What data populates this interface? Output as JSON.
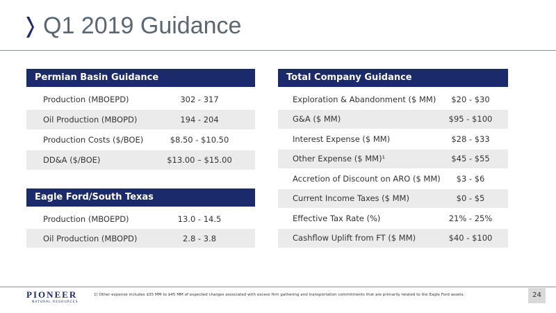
{
  "header": {
    "title": "Q1 2019 Guidance"
  },
  "permian": {
    "title": "Permian Basin Guidance",
    "rows": [
      [
        "Production (MBOEPD)",
        "302 - 317"
      ],
      [
        "Oil Production (MBOPD)",
        "194 - 204"
      ],
      [
        "Production Costs ($/BOE)",
        "$8.50 - $10.50"
      ],
      [
        "DD&A ($/BOE)",
        "$13.00 – $15.00"
      ]
    ]
  },
  "eagle_ford": {
    "title": "Eagle Ford/South Texas",
    "rows": [
      [
        "Production (MBOEPD)",
        "13.0 - 14.5"
      ],
      [
        "Oil Production (MBOPD)",
        "2.8 - 3.8"
      ]
    ]
  },
  "company": {
    "title": "Total Company Guidance",
    "rows": [
      [
        "Exploration & Abandonment ($ MM)",
        "$20 - $30"
      ],
      [
        "G&A ($ MM)",
        "$95 - $100"
      ],
      [
        "Interest Expense ($ MM)",
        "$28 - $33"
      ],
      [
        "Other Expense ($ MM)¹",
        "$45 - $55"
      ],
      [
        "Accretion of Discount on ARO ($ MM)",
        "$3 - $6"
      ],
      [
        "Current Income Taxes ($ MM)",
        "$0 - $5"
      ],
      [
        "Effective Tax Rate (%)",
        "21% - 25%"
      ],
      [
        "Cashflow Uplift from FT ($ MM)",
        "$40 - $100"
      ]
    ]
  },
  "footer": {
    "logo": "PIONEER",
    "logo_sub": "NATURAL RESOURCES",
    "footnote": "1) Other expense includes $35 MM to $45 MM of expected charges associated with excess firm gathering and transportation commitments that are primarily related to the Eagle Ford assets.",
    "page": "24"
  }
}
